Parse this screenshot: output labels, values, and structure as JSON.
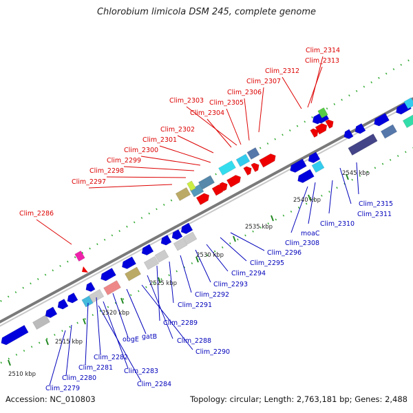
{
  "title": "Chlorobium limicola DSM 245, complete genome",
  "footer": {
    "accession": "Accession: NC_010803",
    "topology": "Topology: circular; Length: 2,763,181 bp; Genes: 2,488"
  },
  "colors": {
    "forward_label": "#dd0000",
    "reverse_label": "#0000bb",
    "backbone": "#8a8a8a",
    "tick": "#22aa22",
    "forward_gene": "#ee0000",
    "reverse_gene": "#0000dd"
  },
  "scale_labels": [
    "2510 kbp",
    "2515 kbp",
    "2520 kbp",
    "2525 kbp",
    "2530 kbp",
    "2535 kbp",
    "2540 kbp",
    "2545 kbp"
  ],
  "forward_labels": [
    "Clim_2314",
    "Clim_2313",
    "Clim_2312",
    "Clim_2307",
    "Clim_2306",
    "Clim_2305",
    "Clim_2303",
    "Clim_2304",
    "Clim_2302",
    "Clim_2301",
    "Clim_2300",
    "Clim_2299",
    "Clim_2298",
    "Clim_2297",
    "Clim_2286"
  ],
  "reverse_labels": [
    "Clim_2315",
    "Clim_2311",
    "Clim_2310",
    "moaC",
    "Clim_2308",
    "Clim_2296",
    "Clim_2295",
    "Clim_2294",
    "Clim_2293",
    "Clim_2292",
    "Clim_2291",
    "Clim_2289",
    "Clim_2288",
    "Clim_2290",
    "gatB",
    "obgE",
    "Clim_2282",
    "Clim_2281",
    "Clim_2283",
    "Clim_2284",
    "Clim_2280",
    "Clim_2279"
  ]
}
